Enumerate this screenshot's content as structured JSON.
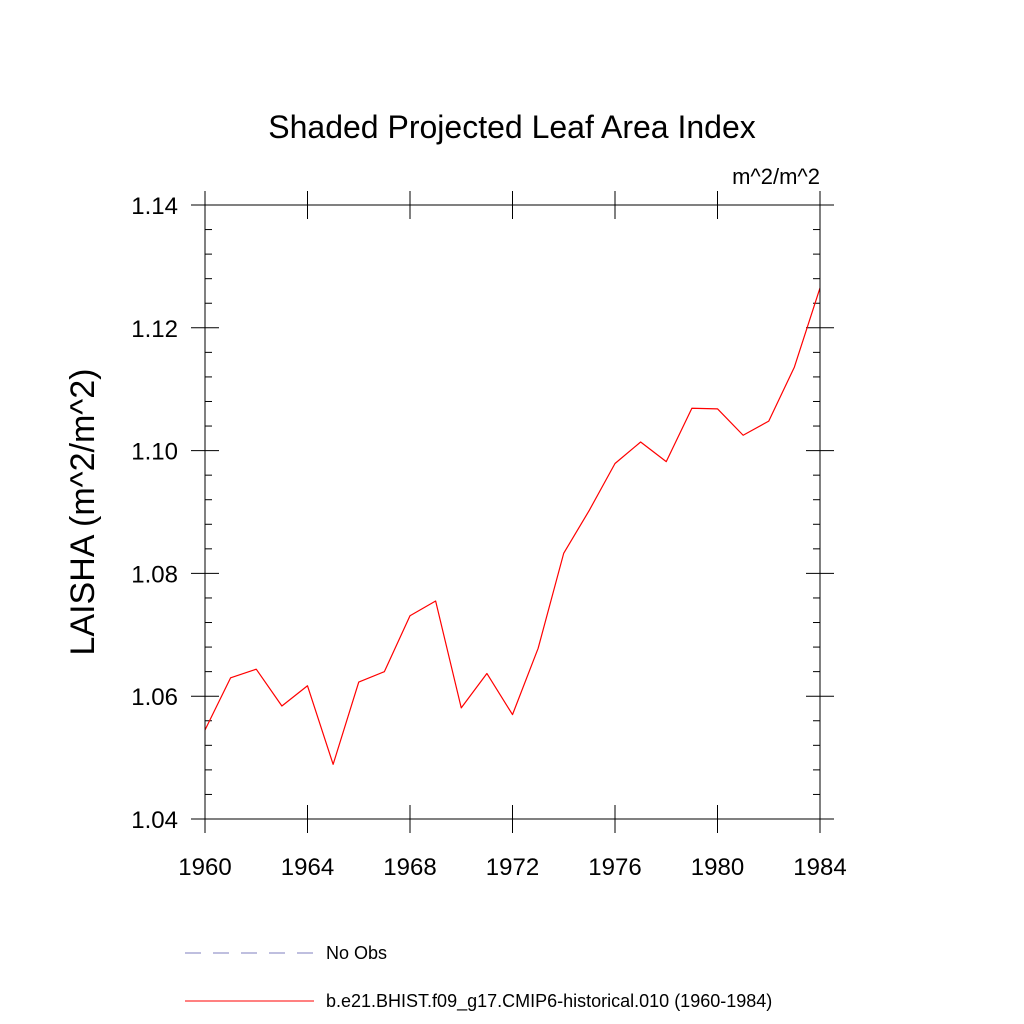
{
  "chart_data": {
    "type": "line",
    "title": "Shaded Projected Leaf Area Index",
    "units": "m^2/m^2",
    "xlabel": "",
    "ylabel": "LAISHA  (m^2/m^2)",
    "xlim": [
      1960,
      1984
    ],
    "ylim": [
      1.04,
      1.14
    ],
    "xticks": [
      1960,
      1964,
      1968,
      1972,
      1976,
      1980,
      1984
    ],
    "xtick_labels": [
      "1960",
      "1964",
      "1968",
      "1972",
      "1976",
      "1980",
      "1984"
    ],
    "yticks": [
      1.04,
      1.06,
      1.08,
      1.1,
      1.12,
      1.14
    ],
    "ytick_labels": [
      "1.04",
      "1.06",
      "1.08",
      "1.10",
      "1.12",
      "1.14"
    ],
    "grid": false,
    "legend_position": "bottom",
    "series": [
      {
        "name": "b.e21.BHIST.f09_g17.CMIP6-historical.010 (1960-1984)",
        "color": "#ff0000",
        "style": "solid",
        "x": [
          1960,
          1961,
          1962,
          1963,
          1964,
          1965,
          1966,
          1967,
          1968,
          1969,
          1970,
          1971,
          1972,
          1973,
          1974,
          1975,
          1976,
          1977,
          1978,
          1979,
          1980,
          1981,
          1982,
          1983,
          1984
        ],
        "y": [
          1.0545,
          1.063,
          1.0644,
          1.0584,
          1.0617,
          1.0489,
          1.0623,
          1.064,
          1.0731,
          1.0755,
          1.0581,
          1.0637,
          1.057,
          1.0678,
          1.0833,
          1.0903,
          1.0979,
          1.1014,
          1.0982,
          1.1069,
          1.1068,
          1.1025,
          1.1048,
          1.1136,
          1.1265
        ]
      }
    ],
    "legend": [
      {
        "label": "No Obs",
        "color": "#7f7fbf",
        "style": "dashed"
      },
      {
        "label": "b.e21.BHIST.f09_g17.CMIP6-historical.010 (1960-1984)",
        "color": "#ff0000",
        "style": "solid"
      }
    ]
  }
}
